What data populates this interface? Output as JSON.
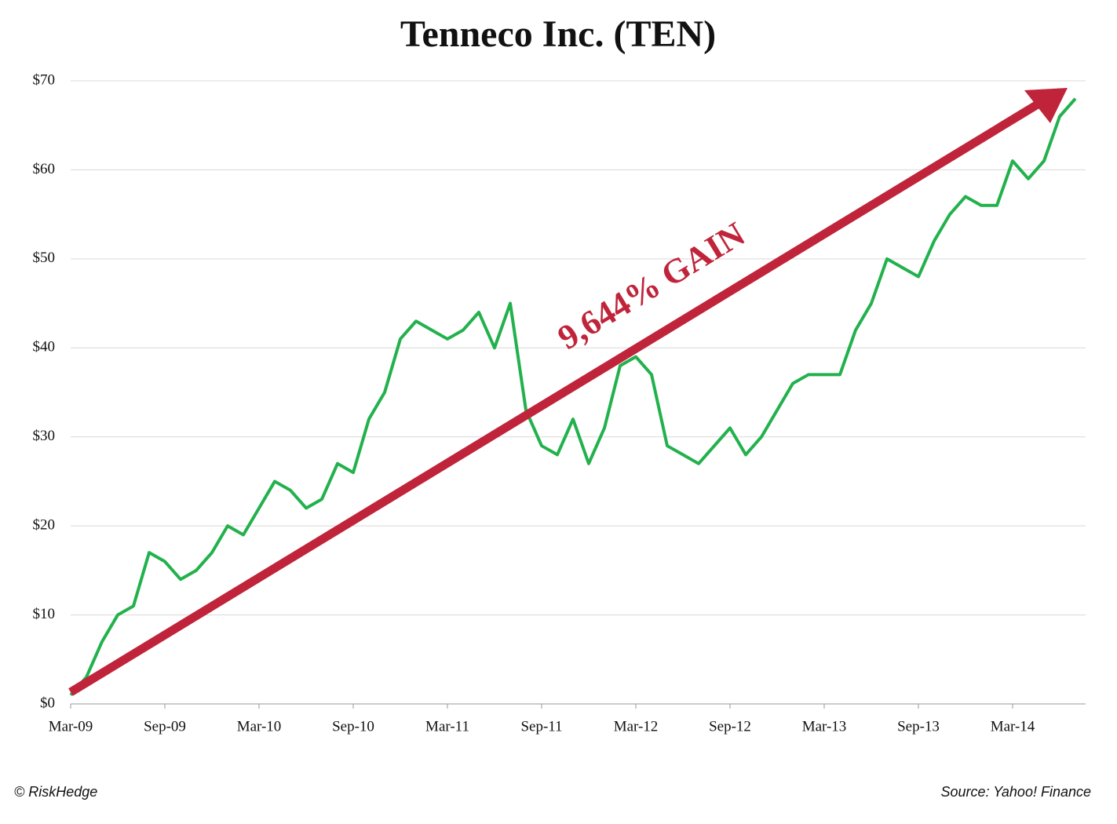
{
  "chart_data": {
    "type": "line",
    "title": "Tenneco Inc. (TEN)",
    "annotation": "9,644% GAIN",
    "credit": "© RiskHedge",
    "source": "Source: Yahoo! Finance",
    "categories": [
      "Mar-09",
      null,
      null,
      null,
      null,
      null,
      "Sep-09",
      null,
      null,
      null,
      null,
      null,
      "Mar-10",
      null,
      null,
      null,
      null,
      null,
      "Sep-10",
      null,
      null,
      null,
      null,
      null,
      "Mar-11",
      null,
      null,
      null,
      null,
      null,
      "Sep-11",
      null,
      null,
      null,
      null,
      null,
      "Mar-12",
      null,
      null,
      null,
      null,
      null,
      "Sep-12",
      null,
      null,
      null,
      null,
      null,
      "Mar-13",
      null,
      null,
      null,
      null,
      null,
      "Sep-13",
      null,
      null,
      null,
      null,
      null,
      "Mar-14",
      null,
      null,
      null,
      null
    ],
    "values": [
      1,
      3,
      7,
      10,
      11,
      17,
      16,
      14,
      15,
      17,
      20,
      19,
      22,
      25,
      24,
      22,
      23,
      27,
      26,
      32,
      35,
      41,
      43,
      42,
      41,
      42,
      44,
      40,
      45,
      33,
      29,
      28,
      32,
      27,
      31,
      38,
      39,
      37,
      29,
      28,
      27,
      29,
      31,
      28,
      30,
      33,
      36,
      37,
      37,
      37,
      42,
      45,
      50,
      49,
      48,
      52,
      55,
      57,
      56,
      56,
      61,
      59,
      61,
      66,
      68
    ],
    "color": "#22b14c",
    "ylim": [
      0,
      70
    ],
    "yticks": [
      {
        "value": 0,
        "label": "$0"
      },
      {
        "value": 10,
        "label": "$10"
      },
      {
        "value": 20,
        "label": "$20"
      },
      {
        "value": 30,
        "label": "$30"
      },
      {
        "value": 40,
        "label": "$40"
      },
      {
        "value": 50,
        "label": "$50"
      },
      {
        "value": 60,
        "label": "$60"
      },
      {
        "value": 70,
        "label": "$70"
      }
    ],
    "grid": true
  }
}
